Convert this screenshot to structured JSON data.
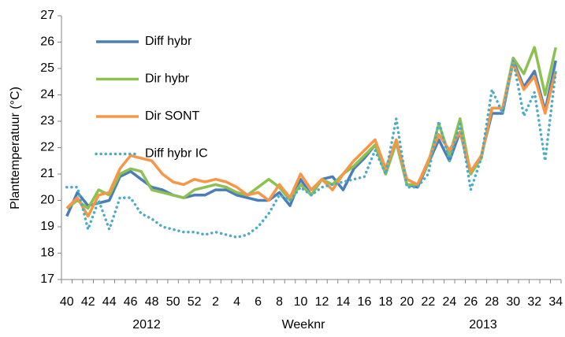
{
  "chart_data": {
    "type": "line",
    "ylabel": "Planttemperatuur (°C)",
    "xlabel": "Weeknr",
    "x_group_labels": [
      "2012",
      "2013"
    ],
    "categories": [
      "40",
      null,
      "42",
      null,
      "44",
      null,
      "46",
      null,
      "48",
      null,
      "50",
      null,
      "52",
      null,
      "2",
      null,
      "4",
      null,
      "6",
      null,
      "8",
      null,
      "10",
      null,
      "12",
      null,
      "14",
      null,
      "16",
      null,
      "18",
      null,
      "20",
      null,
      "22",
      null,
      "24",
      null,
      "26",
      null,
      "28",
      null,
      "30",
      null,
      "32",
      null,
      "34"
    ],
    "ylim": [
      17,
      27
    ],
    "yticks": [
      17,
      18,
      19,
      20,
      21,
      22,
      23,
      24,
      25,
      26,
      27
    ],
    "grid": false,
    "legend": "upper left",
    "series": [
      {
        "name": "Diff hybr",
        "color": "#4a7ebb",
        "style": "solid",
        "values": [
          19.4,
          20.3,
          19.8,
          19.9,
          20.0,
          20.9,
          21.1,
          20.8,
          20.5,
          20.4,
          20.2,
          20.1,
          20.2,
          20.2,
          20.4,
          20.4,
          20.2,
          20.1,
          20.0,
          20.0,
          20.3,
          19.8,
          20.8,
          20.2,
          20.8,
          20.9,
          20.4,
          21.2,
          21.6,
          22.1,
          21.0,
          22.2,
          20.6,
          20.5,
          21.4,
          22.3,
          21.5,
          22.6,
          21.0,
          21.7,
          23.3,
          23.3,
          25.3,
          24.3,
          24.9,
          23.4,
          25.3
        ]
      },
      {
        "name": "Dir hybr",
        "color": "#8cc152",
        "style": "solid",
        "values": [
          19.7,
          20.0,
          19.7,
          20.4,
          20.2,
          21.0,
          21.2,
          21.1,
          20.4,
          20.3,
          20.2,
          20.1,
          20.4,
          20.5,
          20.6,
          20.5,
          20.3,
          20.2,
          20.5,
          20.8,
          20.5,
          20.0,
          20.6,
          20.2,
          20.8,
          20.6,
          21.0,
          21.3,
          21.7,
          22.1,
          21.0,
          22.2,
          20.6,
          20.6,
          21.4,
          22.9,
          21.7,
          23.1,
          21.0,
          21.6,
          23.5,
          23.5,
          25.4,
          24.8,
          25.8,
          24.0,
          25.8
        ]
      },
      {
        "name": "Dir SONT",
        "color": "#f79646",
        "style": "solid",
        "values": [
          19.7,
          20.1,
          19.4,
          20.2,
          20.3,
          21.2,
          21.7,
          21.6,
          21.5,
          21.0,
          20.7,
          20.6,
          20.8,
          20.7,
          20.8,
          20.7,
          20.5,
          20.2,
          20.3,
          20.0,
          20.6,
          20.1,
          21.0,
          20.4,
          20.8,
          20.4,
          21.0,
          21.5,
          21.9,
          22.3,
          21.2,
          22.3,
          20.8,
          20.6,
          21.5,
          22.5,
          21.9,
          22.6,
          21.1,
          21.7,
          23.5,
          23.5,
          25.2,
          24.2,
          24.7,
          23.3,
          24.9
        ]
      },
      {
        "name": "Diff hybr IC",
        "color": "#4bacc6",
        "style": "dotted",
        "values": [
          20.5,
          20.5,
          18.9,
          20.0,
          18.9,
          20.1,
          20.1,
          19.5,
          19.3,
          19.0,
          18.9,
          18.8,
          18.8,
          18.7,
          18.8,
          18.7,
          18.6,
          18.7,
          19.0,
          19.5,
          20.2,
          20.0,
          20.5,
          20.2,
          20.5,
          20.6,
          20.7,
          20.8,
          20.9,
          21.9,
          21.0,
          23.1,
          20.5,
          20.5,
          21.0,
          23.0,
          21.5,
          22.9,
          20.4,
          21.6,
          24.2,
          23.3,
          25.3,
          23.2,
          24.1,
          21.5,
          24.9
        ]
      }
    ]
  }
}
